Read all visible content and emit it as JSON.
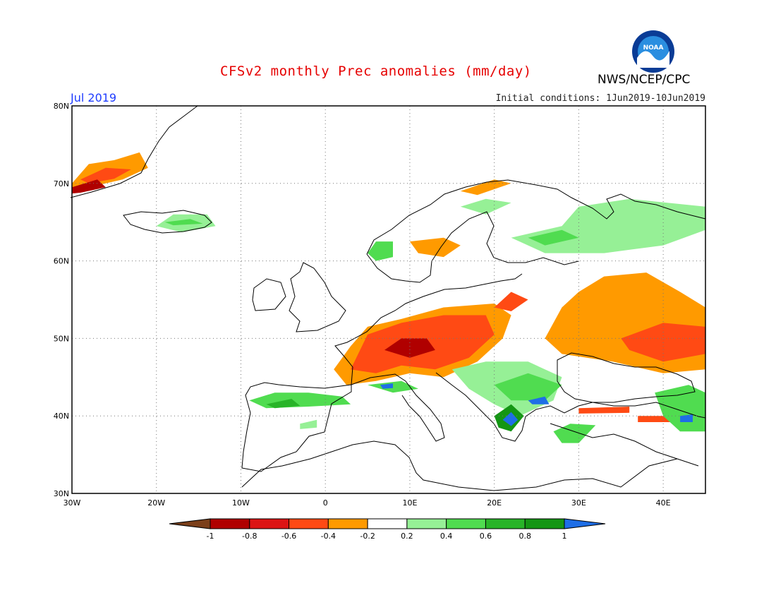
{
  "title": "CFSv2 monthly Prec anomalies (mm/day)",
  "month": "Jul 2019",
  "initial_conditions": "Initial conditions: 1Jun2019-10Jun2019",
  "agency": "NWS/NCEP/CPC",
  "logo_icon": "noaa-logo-icon",
  "logo_text": "NOAA",
  "map": {
    "lon_range": [
      -30,
      45
    ],
    "lat_range": [
      30,
      80
    ],
    "lat_labels": [
      "30N",
      "40N",
      "50N",
      "60N",
      "70N",
      "80N"
    ],
    "lon_labels": [
      "30W",
      "20W",
      "10W",
      "0",
      "10E",
      "20E",
      "30E",
      "40E"
    ],
    "grid_style": "dotted"
  },
  "legend": {
    "labels": [
      "-1",
      "-0.8",
      "-0.6",
      "-0.4",
      "-0.2",
      "0.2",
      "0.4",
      "0.6",
      "0.8",
      "1"
    ],
    "colors": [
      "#7b3f1a",
      "#b00000",
      "#dc1414",
      "#ff4a14",
      "#ff9a00",
      "#ffffff",
      "#96f096",
      "#50dc50",
      "#28b428",
      "#149614",
      "#1e6ee6"
    ]
  },
  "anomaly_regions": [
    {
      "name": "greenland-east-dry",
      "color": "#ff9a00",
      "poly": [
        [
          -30,
          70
        ],
        [
          -28,
          72.5
        ],
        [
          -25,
          73
        ],
        [
          -22,
          74
        ],
        [
          -21,
          72
        ],
        [
          -24,
          70.5
        ],
        [
          -28,
          69.5
        ],
        [
          -30,
          69
        ]
      ]
    },
    {
      "name": "greenland-east-drier",
      "color": "#ff4a14",
      "poly": [
        [
          -29,
          70.5
        ],
        [
          -26,
          72
        ],
        [
          -23,
          71.8
        ],
        [
          -25,
          70.6
        ],
        [
          -28,
          70
        ]
      ]
    },
    {
      "name": "greenland-coast-driest",
      "color": "#b00000",
      "poly": [
        [
          -30,
          69.5
        ],
        [
          -27,
          70.5
        ],
        [
          -26,
          69.5
        ],
        [
          -29,
          68.8
        ],
        [
          -30,
          68.7
        ]
      ]
    },
    {
      "name": "iceland-wet",
      "color": "#96f096",
      "poly": [
        [
          -20,
          64.5
        ],
        [
          -18,
          66
        ],
        [
          -14,
          66
        ],
        [
          -13,
          64.5
        ],
        [
          -17,
          63.7
        ]
      ]
    },
    {
      "name": "iceland-wetter",
      "color": "#50dc50",
      "poly": [
        [
          -19,
          65
        ],
        [
          -16,
          65.4
        ],
        [
          -14.5,
          64.8
        ],
        [
          -18,
          64.6
        ]
      ]
    },
    {
      "name": "norway-coast-wet",
      "color": "#50dc50",
      "poly": [
        [
          5,
          61
        ],
        [
          6,
          62.5
        ],
        [
          8,
          62.5
        ],
        [
          8,
          60.5
        ],
        [
          6,
          60
        ]
      ]
    },
    {
      "name": "norway-dry-patch",
      "color": "#ff9a00",
      "poly": [
        [
          10,
          62.5
        ],
        [
          14,
          63
        ],
        [
          16,
          62
        ],
        [
          14,
          60.5
        ],
        [
          11,
          61
        ]
      ]
    },
    {
      "name": "scandinavia-dry-north",
      "color": "#ff9a00",
      "poly": [
        [
          16,
          69
        ],
        [
          20,
          70.5
        ],
        [
          22,
          70
        ],
        [
          18,
          68.5
        ]
      ]
    },
    {
      "name": "finland-north-wet",
      "color": "#96f096",
      "poly": [
        [
          16,
          67
        ],
        [
          19,
          68
        ],
        [
          22,
          67.5
        ],
        [
          19,
          66
        ]
      ]
    },
    {
      "name": "russia-north-wet",
      "color": "#96f096",
      "poly": [
        [
          22,
          63
        ],
        [
          28,
          64.5
        ],
        [
          30,
          67
        ],
        [
          36,
          68
        ],
        [
          45,
          67
        ],
        [
          45,
          64
        ],
        [
          40,
          62
        ],
        [
          33,
          61
        ],
        [
          26,
          61
        ]
      ]
    },
    {
      "name": "russia-north-wetter",
      "color": "#50dc50",
      "poly": [
        [
          24,
          63
        ],
        [
          28,
          64
        ],
        [
          30,
          63
        ],
        [
          26,
          62
        ]
      ]
    },
    {
      "name": "western-russia-dry",
      "color": "#ff9a00",
      "poly": [
        [
          33,
          58
        ],
        [
          38,
          58.5
        ],
        [
          42,
          56
        ],
        [
          45,
          54
        ],
        [
          45,
          46
        ],
        [
          40,
          45.5
        ],
        [
          34,
          47
        ],
        [
          28,
          48
        ],
        [
          26,
          50
        ],
        [
          28,
          54
        ],
        [
          30,
          56
        ]
      ]
    },
    {
      "name": "western-russia-drier",
      "color": "#ff4a14",
      "poly": [
        [
          35,
          50
        ],
        [
          40,
          52
        ],
        [
          45,
          51.5
        ],
        [
          45,
          48
        ],
        [
          40,
          47
        ],
        [
          36,
          48.5
        ]
      ]
    },
    {
      "name": "central-europe-dry",
      "color": "#ff9a00",
      "poly": [
        [
          2.5,
          44
        ],
        [
          1,
          46
        ],
        [
          3,
          49
        ],
        [
          5,
          51.5
        ],
        [
          9,
          52.5
        ],
        [
          14,
          54
        ],
        [
          20,
          54.5
        ],
        [
          22,
          53
        ],
        [
          21,
          50
        ],
        [
          18,
          47
        ],
        [
          14,
          45
        ],
        [
          10,
          45.5
        ],
        [
          6,
          44.5
        ]
      ]
    },
    {
      "name": "central-europe-drier",
      "color": "#ff4a14",
      "poly": [
        [
          3,
          46
        ],
        [
          5,
          50.5
        ],
        [
          9,
          52
        ],
        [
          14,
          53
        ],
        [
          19,
          53
        ],
        [
          20,
          50.5
        ],
        [
          17,
          47.5
        ],
        [
          13,
          46
        ],
        [
          9,
          46.5
        ],
        [
          6,
          45.5
        ]
      ]
    },
    {
      "name": "central-europe-driest",
      "color": "#b00000",
      "poly": [
        [
          7,
          48.5
        ],
        [
          9,
          50
        ],
        [
          12,
          50
        ],
        [
          13,
          48.5
        ],
        [
          10,
          47.5
        ]
      ]
    },
    {
      "name": "baltic-dry",
      "color": "#ff4a14",
      "poly": [
        [
          20,
          54
        ],
        [
          22,
          56
        ],
        [
          24,
          55
        ],
        [
          22,
          53.5
        ]
      ]
    },
    {
      "name": "balkans-wet",
      "color": "#96f096",
      "poly": [
        [
          15,
          46
        ],
        [
          19,
          47
        ],
        [
          24,
          47
        ],
        [
          28,
          45
        ],
        [
          27,
          42
        ],
        [
          23,
          40
        ],
        [
          20,
          41.5
        ],
        [
          17,
          43.5
        ]
      ]
    },
    {
      "name": "balkans-wetter",
      "color": "#50dc50",
      "poly": [
        [
          20,
          44
        ],
        [
          24,
          45.5
        ],
        [
          28,
          44
        ],
        [
          26,
          42
        ],
        [
          22,
          42
        ]
      ]
    },
    {
      "name": "greece-wettest",
      "color": "#149614",
      "poly": [
        [
          20,
          40
        ],
        [
          22,
          41.5
        ],
        [
          23.5,
          40
        ],
        [
          22,
          38
        ],
        [
          20.5,
          38.5
        ]
      ]
    },
    {
      "name": "greece-blue",
      "color": "#1e6ee6",
      "poly": [
        [
          21,
          39.5
        ],
        [
          22,
          40.5
        ],
        [
          22.8,
          39.5
        ],
        [
          22,
          38.7
        ]
      ]
    },
    {
      "name": "thrace-blue",
      "color": "#1e6ee6",
      "poly": [
        [
          24,
          42
        ],
        [
          26,
          42.5
        ],
        [
          26.5,
          41.5
        ],
        [
          24.5,
          41.5
        ]
      ]
    },
    {
      "name": "iberia-wet",
      "color": "#50dc50",
      "poly": [
        [
          -9,
          42
        ],
        [
          -6,
          43
        ],
        [
          -2,
          43
        ],
        [
          2,
          42.5
        ],
        [
          3,
          41.5
        ],
        [
          -2,
          41.2
        ],
        [
          -7,
          41
        ]
      ]
    },
    {
      "name": "iberia-wetter",
      "color": "#28b428",
      "poly": [
        [
          -7,
          41.5
        ],
        [
          -4,
          42.2
        ],
        [
          -3,
          41.3
        ],
        [
          -6,
          41
        ]
      ]
    },
    {
      "name": "iberia-south-wet",
      "color": "#96f096",
      "poly": [
        [
          -3,
          39
        ],
        [
          -1,
          39.5
        ],
        [
          -1,
          38.5
        ],
        [
          -3,
          38.3
        ]
      ]
    },
    {
      "name": "alps-wet",
      "color": "#50dc50",
      "poly": [
        [
          5,
          44
        ],
        [
          9,
          44.5
        ],
        [
          11,
          43.5
        ],
        [
          8,
          43
        ]
      ]
    },
    {
      "name": "italy-blue",
      "color": "#1e6ee6",
      "poly": [
        [
          6.5,
          44
        ],
        [
          8,
          44.2
        ],
        [
          8,
          43.6
        ],
        [
          6.8,
          43.5
        ]
      ]
    },
    {
      "name": "turkey-south-dry",
      "color": "#ff4a14",
      "poly": [
        [
          30,
          41
        ],
        [
          36,
          41.2
        ],
        [
          36,
          40.4
        ],
        [
          30,
          40.3
        ]
      ]
    },
    {
      "name": "turkey-south-east-dry",
      "color": "#ff4a14",
      "poly": [
        [
          37,
          40
        ],
        [
          41,
          40
        ],
        [
          41,
          39.2
        ],
        [
          37,
          39.2
        ]
      ]
    },
    {
      "name": "anatolia-wet",
      "color": "#50dc50",
      "poly": [
        [
          27,
          38
        ],
        [
          29,
          39
        ],
        [
          32,
          38.8
        ],
        [
          30,
          36.5
        ],
        [
          28,
          36.5
        ]
      ]
    },
    {
      "name": "caucasus-wet",
      "color": "#50dc50",
      "poly": [
        [
          39,
          43
        ],
        [
          43,
          44
        ],
        [
          45,
          43
        ],
        [
          45,
          38
        ],
        [
          42,
          38
        ],
        [
          40,
          40
        ]
      ]
    },
    {
      "name": "caucasus-blue",
      "color": "#1e6ee6",
      "poly": [
        [
          42,
          40
        ],
        [
          43.5,
          40.2
        ],
        [
          43.5,
          39.2
        ],
        [
          42,
          39.2
        ]
      ]
    }
  ]
}
